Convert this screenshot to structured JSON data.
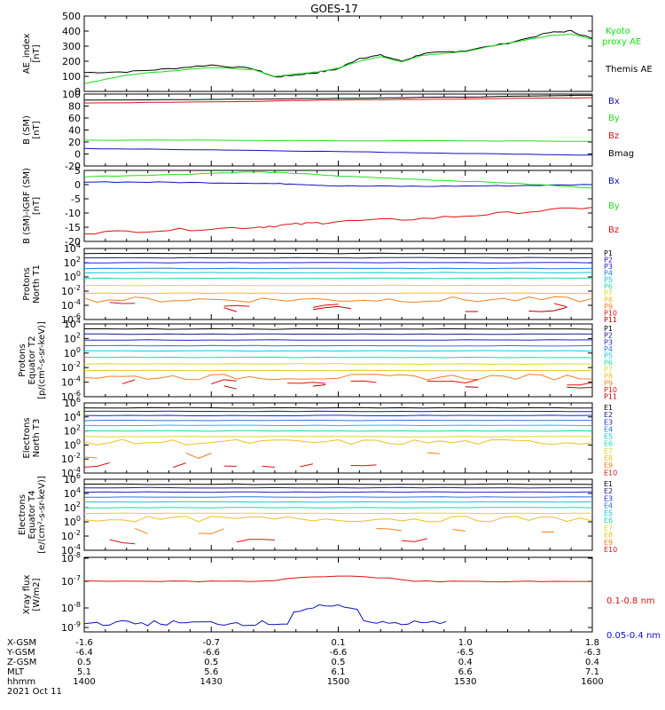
{
  "title": "GOES-17",
  "colors": {
    "ae_kyoto": "#11dd11",
    "ae_themis": "#000000",
    "bx": "#1010c0",
    "by": "#22dd22",
    "bz": "#e01010",
    "bmag": "#000000",
    "xray_long": "#e01010",
    "xray_short": "#1010c0",
    "protons": [
      "#000000",
      "#1a1a8c",
      "#2020d0",
      "#1f7ae0",
      "#10c8d8",
      "#20d8a0",
      "#d8d830",
      "#f0c020",
      "#f08020",
      "#e01010",
      "#b00000"
    ],
    "electrons": [
      "#000000",
      "#1a1a8c",
      "#2020d0",
      "#1f7ae0",
      "#10c8d8",
      "#20d8a0",
      "#d8d830",
      "#f0c020",
      "#f08020",
      "#e01010"
    ]
  },
  "x_axis": {
    "rows": [
      {
        "label": "X-GSM",
        "values": [
          "-1.6",
          "-0.7",
          "0.1",
          "1.0",
          "1.8"
        ]
      },
      {
        "label": "Y-GSM",
        "values": [
          "-6.4",
          "-6.6",
          "-6.6",
          "-6.5",
          "-6.3"
        ]
      },
      {
        "label": "Z-GSM",
        "values": [
          "0.5",
          "0.5",
          "0.5",
          "0.4",
          "0.4"
        ]
      },
      {
        "label": "MLT",
        "values": [
          "5.1",
          "5.6",
          "6.1",
          "6.6",
          "7.1"
        ]
      },
      {
        "label": "hhmm",
        "values": [
          "1400",
          "1430",
          "1500",
          "1530",
          "1600"
        ]
      }
    ],
    "date": "2021 Oct 11"
  },
  "chart_data": [
    {
      "type": "line",
      "id": "ae",
      "ylabel": "AE_index\n[nT]",
      "ylim": [
        0,
        500
      ],
      "yticks": [
        "0",
        "100",
        "200",
        "300",
        "400",
        "500"
      ],
      "x": [
        "1400",
        "1410",
        "1420",
        "1430",
        "1440",
        "1445",
        "1450",
        "1455",
        "1500",
        "1505",
        "1510",
        "1515",
        "1520",
        "1525",
        "1530",
        "1540",
        "1550",
        "1555",
        "1600"
      ],
      "series": [
        {
          "name": "Themis AE",
          "color_key": "ae_themis",
          "values": [
            125,
            130,
            150,
            175,
            150,
            95,
            110,
            125,
            150,
            220,
            240,
            200,
            250,
            260,
            270,
            320,
            390,
            400,
            350
          ]
        },
        {
          "name": "Kyoto\nproxy AE",
          "color_key": "ae_kyoto",
          "values": [
            50,
            110,
            135,
            160,
            145,
            100,
            115,
            130,
            155,
            200,
            230,
            195,
            240,
            250,
            265,
            320,
            370,
            380,
            345
          ]
        }
      ]
    },
    {
      "type": "line",
      "id": "b_sm",
      "ylabel": "B (SM)\n[nT]",
      "ylim": [
        -20,
        100
      ],
      "yticks": [
        "-20",
        "0",
        "20",
        "40",
        "60",
        "80",
        "100"
      ],
      "x": [
        "1400",
        "1430",
        "1500",
        "1530",
        "1600"
      ],
      "series": [
        {
          "name": "Bx",
          "color_key": "bx",
          "values": [
            9,
            7,
            4,
            1,
            -2
          ]
        },
        {
          "name": "By",
          "color_key": "by",
          "values": [
            23,
            23,
            22,
            22,
            21
          ]
        },
        {
          "name": "Bz",
          "color_key": "bz",
          "values": [
            85,
            87,
            90,
            92,
            94
          ]
        },
        {
          "name": "Bmag",
          "color_key": "bmag",
          "values": [
            90,
            91,
            93,
            95,
            98
          ]
        }
      ]
    },
    {
      "type": "line",
      "id": "b_igrf",
      "ylabel": "B (SM)-IGRF (SM)\n[nT]",
      "ylim": [
        -20,
        5
      ],
      "yticks": [
        "-20",
        "-15",
        "-10",
        "-5",
        "0",
        "5"
      ],
      "x": [
        "1400",
        "1420",
        "1440",
        "1450",
        "1500",
        "1520",
        "1540",
        "1600"
      ],
      "series": [
        {
          "name": "Bx",
          "color_key": "bx",
          "values": [
            1,
            0.8,
            0.5,
            0.2,
            -0.5,
            -0.6,
            -0.4,
            0
          ]
        },
        {
          "name": "By",
          "color_key": "by",
          "values": [
            2.8,
            3.5,
            4.5,
            4.0,
            3.0,
            1.8,
            0.6,
            -1.2
          ]
        },
        {
          "name": "Bz",
          "color_key": "bz",
          "values": [
            -17,
            -16,
            -15,
            -14,
            -13,
            -12,
            -10,
            -8
          ]
        }
      ]
    },
    {
      "type": "line",
      "id": "protons_t1",
      "yscale": "log",
      "ylabel": "Protons\nNorth T1",
      "ylim_exp": [
        -6,
        4
      ],
      "yticks": [
        "10^4",
        "10^2",
        "10^0",
        "10^-2",
        "10^-4",
        "10^-6"
      ],
      "channels": [
        "P1",
        "P2",
        "P3",
        "P4",
        "P5",
        "P6",
        "P7",
        "P8",
        "P9",
        "P10",
        "P11"
      ],
      "log_levels": [
        3.3,
        2.7,
        2.0,
        1.2,
        0.6,
        -0.2,
        -1.2,
        -2.3,
        -3.2,
        -3.9,
        -4.5
      ]
    },
    {
      "type": "line",
      "id": "protons_t2",
      "yscale": "log",
      "ylabel": "Protons\nEquator T2\n[p/(cm²-s-sr-keV)]",
      "ylim_exp": [
        -6,
        4
      ],
      "yticks": [
        "10^4",
        "10^2",
        "10^0",
        "10^-2",
        "10^-4",
        "10^-6"
      ],
      "channels": [
        "P1",
        "P2",
        "P3",
        "P4",
        "P5",
        "P6",
        "P7",
        "P8",
        "P9",
        "P10",
        "P11"
      ],
      "log_levels": [
        3.3,
        2.6,
        1.8,
        1.0,
        0.3,
        -0.6,
        -1.5,
        -2.4,
        -3.3,
        -4.0,
        -4.6
      ]
    },
    {
      "type": "line",
      "id": "electrons_t3",
      "yscale": "log",
      "ylabel": "Electrons\nNorth T3",
      "ylim_exp": [
        -4,
        6
      ],
      "yticks": [
        "10^6",
        "10^4",
        "10^2",
        "10^0",
        "10^-2",
        "10^-4"
      ],
      "channels": [
        "E1",
        "E2",
        "E3",
        "E4",
        "E5",
        "E6",
        "E7",
        "E8",
        "E9",
        "E10"
      ],
      "log_levels": [
        5.3,
        4.8,
        4.2,
        3.5,
        2.8,
        2.0,
        1.2,
        0.4,
        -1.5,
        -2.8
      ]
    },
    {
      "type": "line",
      "id": "electrons_t4",
      "yscale": "log",
      "ylabel": "Electrons\nEquator T4\n[e/(cm²-s-sr-keV)]",
      "ylim_exp": [
        -4,
        6
      ],
      "yticks": [
        "10^6",
        "10^4",
        "10^2",
        "10^0",
        "10^-2",
        "10^-4"
      ],
      "channels": [
        "E1",
        "E2",
        "E3",
        "E4",
        "E5",
        "E6",
        "E7",
        "E8",
        "E9",
        "E10"
      ],
      "log_levels": [
        5.3,
        4.8,
        4.2,
        3.5,
        2.8,
        2.0,
        1.2,
        0.4,
        -1.3,
        -2.7
      ]
    },
    {
      "type": "line",
      "id": "xray",
      "yscale": "log",
      "ylabel": "Xray flux\n[W/m2]",
      "ylim_exp": [
        -9.2,
        -8
      ],
      "yticks": [
        "10^-8",
        "10^-7",
        "10^-8",
        "10^-9"
      ],
      "series": [
        {
          "name": "0.1-0.8 nm",
          "color_key": "xray_long"
        },
        {
          "name": "0.05-0.4 nm",
          "color_key": "xray_short"
        }
      ]
    }
  ]
}
